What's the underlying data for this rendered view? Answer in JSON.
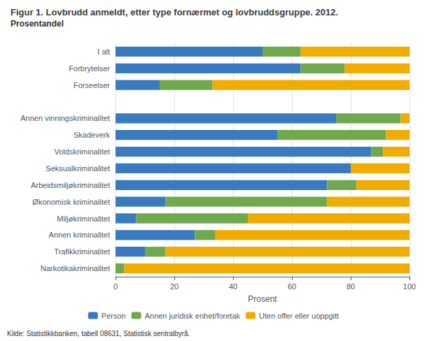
{
  "chart_data": {
    "type": "bar",
    "orientation": "horizontal",
    "stacked": true,
    "title": "Figur 1. Lovbrudd anmeldt, etter type fornærmet og lovbruddsgruppe. 2012.",
    "subtitle": "Prosentandel",
    "xlabel": "Prosent",
    "annotations": [
      "Kilde: Statistikkbanken, tabell 08631, Statistisk sentralbyrå."
    ],
    "categories": [
      "I alt",
      "Forbrytelser",
      "Forseelser",
      null,
      "Annen vinningskriminalitet",
      "Skadeverk",
      "Voldskriminalitet",
      "Seksualkriminalitet",
      "Arbeidsmiljøkriminalitet",
      "Økonomisk kriminalitet",
      "Miljøkriminalitet",
      "Annen kriminalitet",
      "Trafikkriminalitet",
      "Narkotikakriminalitet"
    ],
    "series": [
      {
        "name": "Person",
        "color": "#3a7abf",
        "values": [
          50,
          63,
          15,
          0,
          75,
          55,
          87,
          80,
          72,
          17,
          7,
          27,
          10,
          0
        ]
      },
      {
        "name": "Annen juridisk enhet/foretak",
        "color": "#70a84e",
        "values": [
          13,
          15,
          18,
          0,
          22,
          37,
          4,
          0,
          10,
          55,
          38,
          7,
          7,
          3
        ]
      },
      {
        "name": "Uten offer eller uoppgitt",
        "color": "#f0ad00",
        "values": [
          37,
          22,
          67,
          0,
          3,
          8,
          9,
          20,
          18,
          28,
          55,
          66,
          83,
          97
        ]
      }
    ],
    "xlim": [
      0,
      100
    ],
    "xticks": [
      0,
      20,
      40,
      60,
      80,
      100
    ],
    "grid": true,
    "legend": "bottom"
  }
}
